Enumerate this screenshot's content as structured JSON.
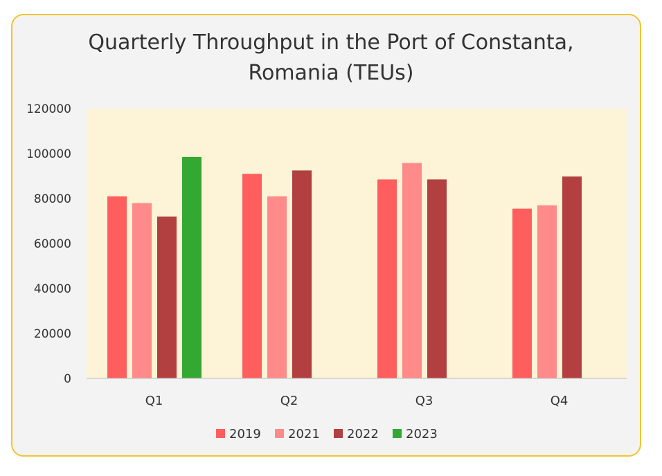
{
  "chart_data": {
    "type": "bar",
    "title_lines": [
      "Quarterly Throughput in the Port of Constanta,",
      "Romania (TEUs)"
    ],
    "xlabel": "",
    "ylabel": "",
    "categories": [
      "Q1",
      "Q2",
      "Q3",
      "Q4"
    ],
    "series": [
      {
        "name": "2019",
        "color": "#ff5e5e",
        "values": [
          81000,
          91000,
          88500,
          75500
        ]
      },
      {
        "name": "2021",
        "color": "#ff8a8a",
        "values": [
          78000,
          81000,
          95800,
          77000
        ]
      },
      {
        "name": "2022",
        "color": "#b34040",
        "values": [
          72000,
          92500,
          88500,
          89800
        ]
      },
      {
        "name": "2023",
        "color": "#33a832",
        "values": [
          98500,
          null,
          null,
          null
        ]
      }
    ],
    "ylim": [
      0,
      120000
    ],
    "yticks": [
      "0",
      "20000",
      "40000",
      "60000",
      "80000",
      "100000",
      "120000"
    ],
    "plot_background": "#fdf3d6",
    "grid": false,
    "legend_position": "bottom-center"
  }
}
